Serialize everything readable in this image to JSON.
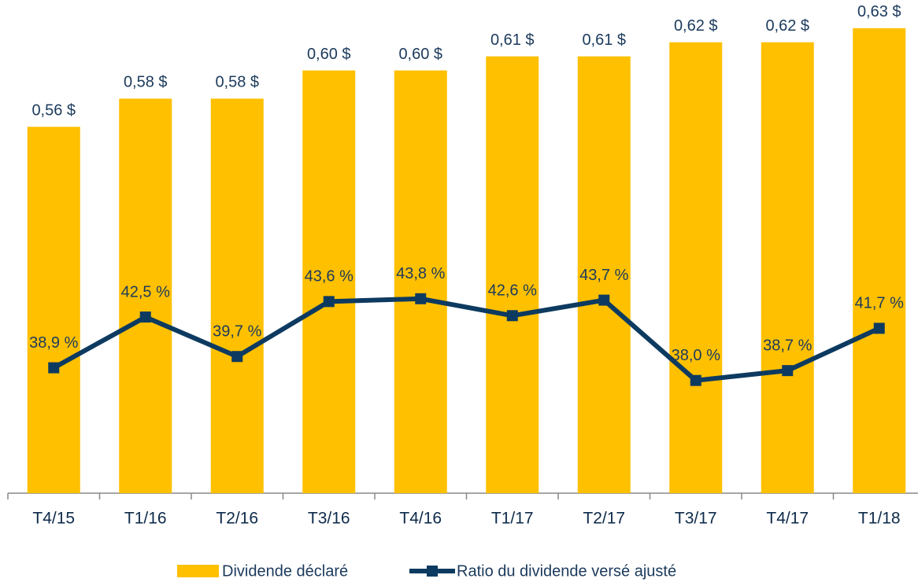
{
  "chart_data": {
    "type": "bar",
    "categories": [
      "T4/15",
      "T1/16",
      "T2/16",
      "T3/16",
      "T4/16",
      "T1/17",
      "T2/17",
      "T3/17",
      "T4/17",
      "T1/18"
    ],
    "series": [
      {
        "name": "Dividende déclaré",
        "type": "bar",
        "color": "#ffc000",
        "values": [
          0.56,
          0.58,
          0.58,
          0.6,
          0.6,
          0.61,
          0.61,
          0.62,
          0.62,
          0.63
        ],
        "value_labels": [
          "0,56 $",
          "0,58 $",
          "0,58 $",
          "0,60 $",
          "0,60 $",
          "0,61 $",
          "0,61 $",
          "0,62 $",
          "0,62 $",
          "0,63 $"
        ]
      },
      {
        "name": "Ratio du dividende versé ajusté",
        "type": "line",
        "axis": "y2",
        "color": "#0d3a60",
        "values": [
          38.9,
          42.5,
          39.7,
          43.6,
          43.8,
          42.6,
          43.7,
          38.0,
          38.7,
          41.7
        ],
        "value_labels": [
          "38,9 %",
          "42,5 %",
          "39,7 %",
          "43,6 %",
          "43,8 %",
          "42,6 %",
          "43,7 %",
          "38,0 %",
          "38,7 %",
          "41,7 %"
        ]
      }
    ],
    "ylim": [
      0.3,
      0.65
    ],
    "y2lim": [
      30,
      65
    ],
    "legend": "bottom"
  }
}
